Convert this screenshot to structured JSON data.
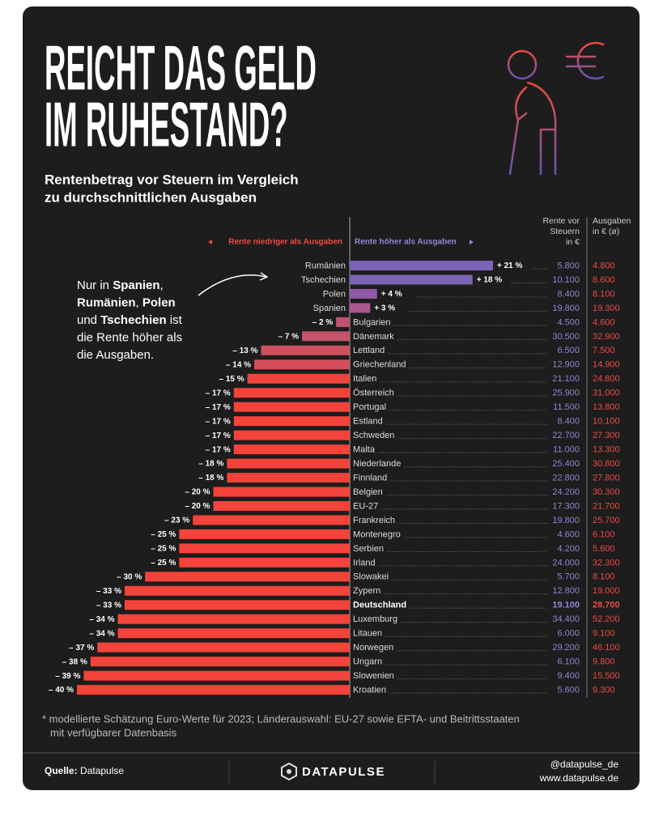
{
  "chart_data": {
    "type": "bar",
    "title": [
      "REICHT DAS GELD",
      "IM RUHESTAND?"
    ],
    "subtitle": [
      "Rentenbetrag vor Steuern im Vergleich",
      "zu durchschnittlichen Ausgaben"
    ],
    "legend_lower": "Rente niedriger als Ausgaben",
    "legend_higher": "Rente höher als Ausgaben",
    "annotation": [
      [
        {
          "text": "Nur in "
        },
        {
          "text": "Spanien",
          "bold": true
        },
        {
          "text": ","
        }
      ],
      [
        {
          "text": "Rumänien",
          "bold": true
        },
        {
          "text": ", "
        },
        {
          "text": "Polen",
          "bold": true
        }
      ],
      [
        {
          "text": "und "
        },
        {
          "text": "Tschechien",
          "bold": true
        },
        {
          "text": " ist"
        }
      ],
      [
        {
          "text": "die Rente höher als"
        }
      ],
      [
        {
          "text": "die Ausgaben."
        }
      ]
    ],
    "categories": [
      "Rumänien",
      "Tschechien",
      "Polen",
      "Spanien",
      "Bulgarien",
      "Dänemark",
      "Lettland",
      "Griechenland",
      "Italien",
      "Österreich",
      "Portugal",
      "Estland",
      "Schweden",
      "Malta",
      "Niederlande",
      "Finnland",
      "Belgien",
      "EU-27",
      "Frankreich",
      "Montenegro",
      "Serbien",
      "Irland",
      "Slowakei",
      "Zypern",
      "Deutschland",
      "Luxemburg",
      "Litauen",
      "Norwegen",
      "Ungarn",
      "Slowenien",
      "Kroatien"
    ],
    "values": [
      21,
      18,
      4,
      3,
      -2,
      -7,
      -13,
      -14,
      -15,
      -17,
      -17,
      -17,
      -17,
      -17,
      -18,
      -18,
      -20,
      -20,
      -23,
      -25,
      -25,
      -25,
      -30,
      -33,
      -33,
      -34,
      -34,
      -37,
      -38,
      -39,
      -40
    ],
    "value_labels": [
      "+ 21 %",
      "+ 18 %",
      "+ 4 %",
      "+ 3 %",
      "– 2 %",
      "– 7 %",
      "– 13 %",
      "– 14 %",
      "– 15 %",
      "– 17 %",
      "– 17 %",
      "– 17 %",
      "– 17 %",
      "– 17 %",
      "– 18 %",
      "– 18 %",
      "– 20 %",
      "– 20 %",
      "– 23 %",
      "– 25 %",
      "– 25 %",
      "– 25 %",
      "– 30 %",
      "– 33 %",
      "– 33 %",
      "– 34 %",
      "– 34 %",
      "– 37 %",
      "– 38 %",
      "– 39 %",
      "– 40 %"
    ],
    "colors": [
      "#7b63b5",
      "#7b63b5",
      "#8f5aa6",
      "#a9578f",
      "#c05370",
      "#c4536b",
      "#cf505e",
      "#d34e5a",
      "#ee463e",
      "#f4433b",
      "#f4433b",
      "#f4433b",
      "#f4433b",
      "#f4433b",
      "#f4433b",
      "#f4433b",
      "#f4433b",
      "#f4433b",
      "#f4433b",
      "#f4433b",
      "#f4433b",
      "#f4433b",
      "#f4433b",
      "#f4433b",
      "#f4433b",
      "#f4433b",
      "#f4433b",
      "#f4433b",
      "#f4433b",
      "#f4433b",
      "#f4433b"
    ],
    "xlim": [
      -40,
      21
    ],
    "highlight_index": 24,
    "columns": [
      {
        "name": [
          "Rente vor",
          "Steuern",
          "in €"
        ],
        "color": "#8e86d6",
        "values": [
          5800,
          10100,
          8400,
          19800,
          4500,
          30500,
          6500,
          12900,
          21100,
          25900,
          11500,
          8400,
          22700,
          11000,
          25400,
          22800,
          24200,
          17300,
          19800,
          4600,
          4200,
          24000,
          5700,
          12800,
          19100,
          34400,
          6000,
          29200,
          6100,
          9400,
          5600
        ],
        "value_labels": [
          "5.800",
          "10.100",
          "8.400",
          "19.800",
          "4.500",
          "30.500",
          "6.500",
          "12.900",
          "21.100",
          "25.900",
          "11.500",
          "8.400",
          "22.700",
          "11.000",
          "25.400",
          "22.800",
          "24.200",
          "17.300",
          "19.800",
          "4.600",
          "4.200",
          "24.000",
          "5.700",
          "12.800",
          "19.100",
          "34.400",
          "6.000",
          "29.200",
          "6.100",
          "9.400",
          "5.600"
        ]
      },
      {
        "name": [
          "Ausgaben",
          "in € (ø)"
        ],
        "color": "#ee4a40",
        "values": [
          4800,
          8600,
          8100,
          19300,
          4600,
          32900,
          7500,
          14900,
          24800,
          31000,
          13800,
          10100,
          27300,
          13300,
          30800,
          27800,
          30300,
          21700,
          25700,
          6100,
          5600,
          32300,
          8100,
          19000,
          28700,
          52200,
          9100,
          46100,
          9800,
          15500,
          9300
        ],
        "value_labels": [
          "4.800",
          "8.600",
          "8.100",
          "19.300",
          "4.600",
          "32.900",
          "7.500",
          "14.900",
          "24.800",
          "31.000",
          "13.800",
          "10.100",
          "27.300",
          "13.300",
          "30.800",
          "27.800",
          "30.300",
          "21.700",
          "25.700",
          "6.100",
          "5.600",
          "32.300",
          "8.100",
          "19.000",
          "28.700",
          "52.200",
          "9.100",
          "46.100",
          "9.800",
          "15.500",
          "9.300"
        ]
      }
    ],
    "footnote": [
      "* modellierte Schätzung Euro-Werte für 2023; Länderauswahl: EU-27 sowie EFTA- und Beitrittsstaaten",
      "mit verfügbarer Datenbasis"
    ]
  },
  "footer": {
    "source_label": "Quelle:",
    "source": "Datapulse",
    "brand": "DATAPULSE",
    "handle": "@datapulse_de",
    "url": "www.datapulse.de"
  }
}
